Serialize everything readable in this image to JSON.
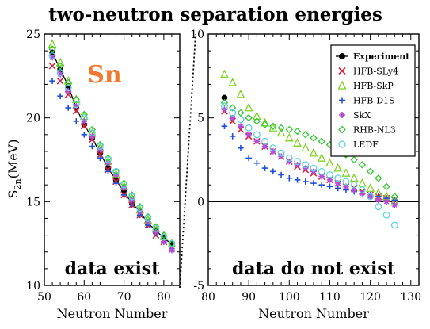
{
  "title": "two-neutron separation energies",
  "element_label": "Sn",
  "ylabel_main": "S",
  "ylabel_sub": "2n",
  "ylabel_unit": "(MeV)",
  "colors": {
    "Experiment": "#000000",
    "HFB-SLy4": "#e0203a",
    "HFB-SkP": "#7ed321",
    "HFB-D1S": "#1f4fd8",
    "SkX": "#b04fd6",
    "RHB-NL3": "#33cc33",
    "LEDF": "#5fd3e0",
    "element_label": "#f07830"
  },
  "chart_data": [
    {
      "type": "scatter",
      "panel": "left",
      "annotation": "data exist",
      "xlabel": "Neutron Number",
      "xlim": [
        50,
        84
      ],
      "ylim": [
        10,
        25
      ],
      "xticks": [
        50,
        60,
        70,
        80
      ],
      "yticks": [
        10,
        15,
        20,
        25
      ],
      "series": [
        {
          "name": "Experiment",
          "marker": "circle-line",
          "x": [
            52,
            54,
            56,
            58,
            60,
            62,
            64,
            66,
            68,
            70,
            72,
            74,
            76,
            78,
            80,
            82
          ],
          "y": [
            23.9,
            22.9,
            21.9,
            20.6,
            19.6,
            18.8,
            17.9,
            17.0,
            16.3,
            15.6,
            14.9,
            14.4,
            13.7,
            13.3,
            12.8,
            12.5
          ]
        },
        {
          "name": "HFB-SLy4",
          "marker": "x",
          "x": [
            52,
            54,
            56,
            58,
            60,
            62,
            64,
            66,
            68,
            70,
            72,
            74,
            76,
            78,
            80,
            82
          ],
          "y": [
            23.1,
            22.2,
            21.4,
            20.4,
            19.5,
            18.7,
            17.8,
            16.9,
            16.2,
            15.4,
            14.8,
            14.2,
            13.6,
            13.0,
            12.6,
            12.2
          ]
        },
        {
          "name": "HFB-SkP",
          "marker": "triangle",
          "x": [
            52,
            54,
            56,
            58,
            60,
            62,
            64,
            66,
            68,
            70,
            72,
            74,
            76,
            78,
            80,
            82
          ],
          "y": [
            24.4,
            23.3,
            22.2,
            21.1,
            20.1,
            19.1,
            18.2,
            17.4,
            16.6,
            15.9,
            15.2,
            14.5,
            13.9,
            13.4,
            12.9,
            12.5
          ]
        },
        {
          "name": "HFB-D1S",
          "marker": "plus",
          "x": [
            52,
            54,
            56,
            58,
            60,
            62,
            64,
            66,
            68,
            70,
            72,
            74,
            76,
            78,
            80,
            82
          ],
          "y": [
            22.2,
            21.3,
            20.6,
            19.8,
            19.0,
            18.3,
            17.6,
            16.8,
            16.1,
            15.4,
            14.8,
            14.2,
            13.6,
            13.1,
            12.6,
            12.2
          ]
        },
        {
          "name": "SkX",
          "marker": "star",
          "x": [
            52,
            54,
            56,
            58,
            60,
            62,
            64,
            66,
            68,
            70,
            72,
            74,
            76,
            78,
            80,
            82
          ],
          "y": [
            23.6,
            22.6,
            21.6,
            20.7,
            19.8,
            18.9,
            18.1,
            17.3,
            16.6,
            15.8,
            15.1,
            14.4,
            13.8,
            13.2,
            12.6,
            12.1
          ]
        },
        {
          "name": "RHB-NL3",
          "marker": "diamond",
          "x": [
            52,
            54,
            56,
            58,
            60,
            62,
            64,
            66,
            68,
            70,
            72,
            74,
            76,
            78,
            80,
            82
          ],
          "y": [
            24.1,
            23.1,
            22.1,
            21.1,
            20.2,
            19.3,
            18.4,
            17.6,
            16.8,
            16.1,
            15.4,
            14.7,
            14.1,
            13.5,
            13.0,
            12.5
          ]
        },
        {
          "name": "LEDF",
          "marker": "circle",
          "x": [
            52,
            54,
            56,
            58,
            60,
            62,
            64,
            66,
            68,
            70,
            72,
            74,
            76,
            78,
            80,
            82
          ],
          "y": [
            23.7,
            22.7,
            21.8,
            20.8,
            20.0,
            19.1,
            18.3,
            17.5,
            16.8,
            16.0,
            15.3,
            14.6,
            14.0,
            13.4,
            12.9,
            12.5
          ]
        }
      ]
    },
    {
      "type": "scatter",
      "panel": "right",
      "annotation": "data do not exist",
      "xlabel": "Neutron Number",
      "xlim": [
        80,
        132
      ],
      "ylim": [
        -5,
        10
      ],
      "xticks": [
        80,
        90,
        100,
        110,
        120,
        130
      ],
      "yticks": [
        -5,
        0,
        5,
        10
      ],
      "reference_line_y": 0,
      "legend_position": "top-right",
      "series": [
        {
          "name": "Experiment",
          "marker": "circle-line",
          "x": [
            84
          ],
          "y": [
            6.2
          ]
        },
        {
          "name": "HFB-SLy4",
          "marker": "x",
          "x": [
            84,
            86,
            88,
            90,
            92,
            94,
            96,
            98,
            100,
            102,
            104,
            106,
            108,
            110,
            112,
            114,
            116,
            118,
            120,
            122,
            124,
            126
          ],
          "y": [
            5.4,
            4.8,
            4.3,
            3.9,
            3.6,
            3.3,
            3.0,
            2.7,
            2.4,
            2.1,
            1.9,
            1.7,
            1.5,
            1.3,
            1.1,
            0.9,
            0.8,
            0.6,
            0.4,
            0.3,
            0.2,
            0.1
          ]
        },
        {
          "name": "HFB-SkP",
          "marker": "triangle",
          "x": [
            84,
            86,
            88,
            90,
            92,
            94,
            96,
            98,
            100,
            102,
            104,
            106,
            108,
            110,
            112,
            114,
            116,
            118,
            120,
            122,
            124,
            126
          ],
          "y": [
            7.6,
            7.1,
            6.4,
            5.6,
            5.1,
            4.7,
            4.4,
            4.1,
            3.8,
            3.5,
            3.2,
            2.9,
            2.6,
            2.3,
            2.0,
            1.7,
            1.4,
            1.1,
            0.8,
            0.5,
            0.3,
            0.0
          ]
        },
        {
          "name": "HFB-D1S",
          "marker": "plus",
          "x": [
            84,
            86,
            88,
            90,
            92,
            94,
            96,
            98,
            100,
            102,
            104,
            106,
            108,
            110,
            112,
            114,
            116,
            118,
            120,
            122,
            124,
            126
          ],
          "y": [
            4.5,
            3.9,
            3.2,
            2.6,
            2.3,
            2.0,
            1.8,
            1.6,
            1.4,
            1.3,
            1.2,
            1.1,
            1.0,
            0.9,
            0.8,
            0.7,
            0.6,
            0.5,
            0.4,
            0.3,
            0.2,
            0.1
          ]
        },
        {
          "name": "SkX",
          "marker": "star",
          "x": [
            84,
            86,
            88,
            90,
            92,
            94,
            96,
            98,
            100,
            102,
            104,
            106,
            108,
            110,
            112,
            114,
            116,
            118,
            120,
            122,
            124,
            126
          ],
          "y": [
            5.5,
            5.0,
            4.5,
            4.0,
            3.6,
            3.3,
            3.0,
            2.7,
            2.4,
            2.2,
            2.0,
            1.8,
            1.5,
            1.3,
            1.1,
            0.9,
            0.7,
            0.5,
            0.3,
            0.1,
            0.0,
            -0.2
          ]
        },
        {
          "name": "RHB-NL3",
          "marker": "diamond",
          "x": [
            84,
            86,
            88,
            90,
            92,
            94,
            96,
            98,
            100,
            102,
            104,
            106,
            108,
            110,
            112,
            114,
            116,
            118,
            120,
            122,
            124,
            126
          ],
          "y": [
            5.9,
            5.6,
            5.3,
            5.0,
            4.8,
            4.6,
            4.5,
            4.4,
            4.3,
            4.2,
            4.0,
            3.8,
            3.6,
            3.4,
            3.1,
            2.8,
            2.5,
            2.2,
            1.8,
            1.4,
            0.9,
            0.3
          ]
        },
        {
          "name": "LEDF",
          "marker": "circle",
          "x": [
            84,
            86,
            88,
            90,
            92,
            94,
            96,
            98,
            100,
            102,
            104,
            106,
            108,
            110,
            112,
            114,
            116,
            118,
            120,
            122,
            124,
            126
          ],
          "y": [
            5.7,
            5.3,
            4.9,
            4.4,
            4.0,
            3.6,
            3.2,
            2.9,
            2.6,
            2.4,
            2.2,
            2.0,
            1.8,
            1.6,
            1.4,
            1.2,
            1.0,
            0.7,
            0.3,
            -0.3,
            -0.8,
            -1.4
          ]
        }
      ]
    }
  ]
}
